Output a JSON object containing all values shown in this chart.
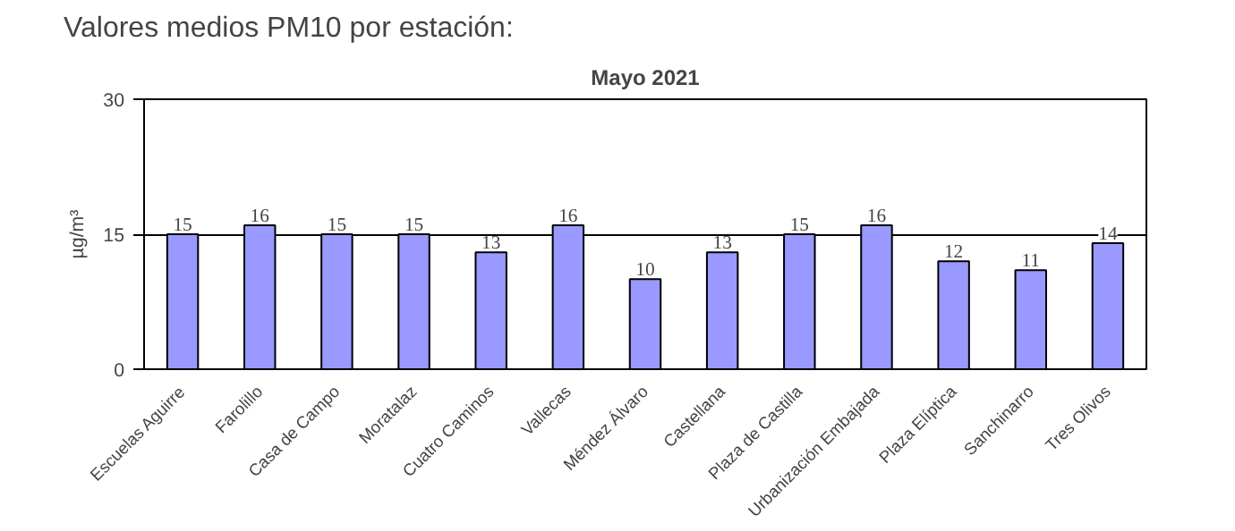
{
  "chart_data": {
    "type": "bar",
    "title": "Valores medios PM10 por estación:",
    "subtitle": "Mayo 2021",
    "ylabel": "µg/m³",
    "categories": [
      "Escuelas Aguirre",
      "Farolillo",
      "Casa de Campo",
      "Moratalaz",
      "Cuatro Caminos",
      "Vallecas",
      "Méndez Álvaro",
      "Castellana",
      "Plaza de Castilla",
      "Urbanización Embajada",
      "Plaza Elíptica",
      "Sanchinarro",
      "Tres Olivos"
    ],
    "values": [
      15,
      16,
      15,
      15,
      13,
      16,
      10,
      13,
      15,
      16,
      12,
      11,
      14
    ],
    "color": "#9999ff",
    "ylim": [
      0,
      30
    ],
    "yticks": [
      0,
      15,
      30
    ],
    "grid": "y",
    "data_labels": true
  }
}
